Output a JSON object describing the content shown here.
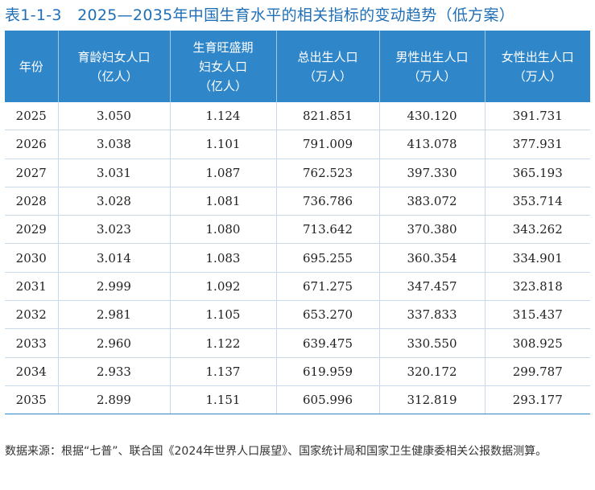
{
  "title": "表1-1-3　2025—2035年中国生育水平的相关指标的变动趋势（低方案）",
  "headers": [
    {
      "line1": "年份",
      "line2": "",
      "line3": ""
    },
    {
      "line1": "育龄妇女人口",
      "line2": "（亿人）",
      "line3": ""
    },
    {
      "line1": "生育旺盛期",
      "line2": "妇女人口",
      "line3": "（亿人）"
    },
    {
      "line1": "总出生人口",
      "line2": "（万人）",
      "line3": ""
    },
    {
      "line1": "男性出生人口",
      "line2": "（万人）",
      "line3": ""
    },
    {
      "line1": "女性出生人口",
      "line2": "（万人）",
      "line3": ""
    }
  ],
  "rows": [
    [
      "2025",
      "3.050",
      "1.124",
      "821.851",
      "430.120",
      "391.731"
    ],
    [
      "2026",
      "3.038",
      "1.101",
      "791.009",
      "413.078",
      "377.931"
    ],
    [
      "2027",
      "3.031",
      "1.087",
      "762.523",
      "397.330",
      "365.193"
    ],
    [
      "2028",
      "3.028",
      "1.081",
      "736.786",
      "383.072",
      "353.714"
    ],
    [
      "2029",
      "3.023",
      "1.080",
      "713.642",
      "370.380",
      "343.262"
    ],
    [
      "2030",
      "3.014",
      "1.083",
      "695.255",
      "360.354",
      "334.901"
    ],
    [
      "2031",
      "2.999",
      "1.092",
      "671.275",
      "347.457",
      "323.818"
    ],
    [
      "2032",
      "2.981",
      "1.105",
      "653.270",
      "337.833",
      "315.437"
    ],
    [
      "2033",
      "2.960",
      "1.122",
      "639.475",
      "330.550",
      "308.925"
    ],
    [
      "2034",
      "2.933",
      "1.137",
      "619.959",
      "320.172",
      "299.787"
    ],
    [
      "2035",
      "2.899",
      "1.151",
      "605.996",
      "312.819",
      "293.177"
    ]
  ],
  "source": "数据来源：根据“七普”、联合国《2024年世界人口展望》、国家统计局和国家卫生健康委相关公报数据测算。",
  "colors": {
    "title": "#1f6fb7",
    "header_bg": "#2f86c9",
    "header_text": "#ffffff"
  }
}
